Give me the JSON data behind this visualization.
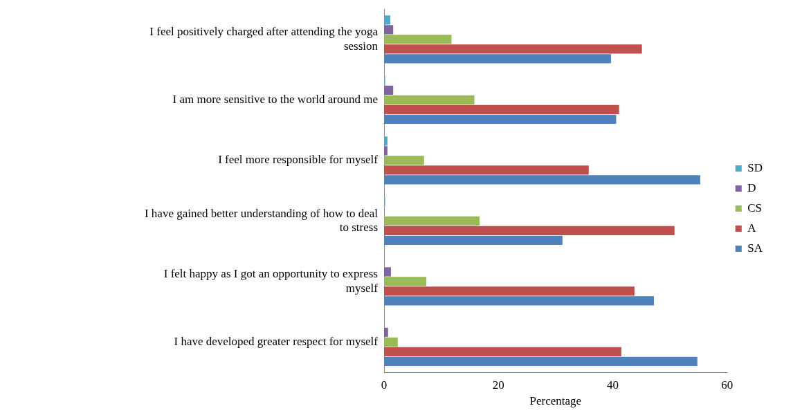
{
  "chart_data": {
    "type": "bar",
    "orientation": "horizontal",
    "xlabel": "Percentage",
    "categories": [
      "I feel positively charged after attending the yoga session",
      "I am more sensitive to the world around me",
      "I feel more responsible for myself",
      "I have gained better understanding of how to deal to stress",
      "I felt happy as I got an opportunity to express myself",
      "I have developed greater respect for myself"
    ],
    "series": [
      {
        "name": "SD",
        "color": "#4bacc6",
        "values": [
          1.1,
          0.2,
          0.6,
          0.2,
          0,
          0
        ]
      },
      {
        "name": "D",
        "color": "#8064a2",
        "values": [
          1.6,
          1.6,
          0.6,
          null,
          1.2,
          0.7
        ]
      },
      {
        "name": "CS",
        "color": "#9bbb59",
        "values": [
          11.8,
          15.8,
          7.0,
          16.7,
          7.4,
          2.4
        ]
      },
      {
        "name": "A",
        "color": "#c0504d",
        "values": [
          45.1,
          41.1,
          35.8,
          50.8,
          43.8,
          41.5
        ]
      },
      {
        "name": "SA",
        "color": "#4f81bd",
        "values": [
          39.7,
          40.6,
          55.3,
          31.2,
          47.2,
          54.8
        ]
      }
    ],
    "xlim": [
      0,
      60
    ],
    "xticks": [
      0,
      20,
      40,
      60
    ],
    "grid": false,
    "legend": "right"
  }
}
